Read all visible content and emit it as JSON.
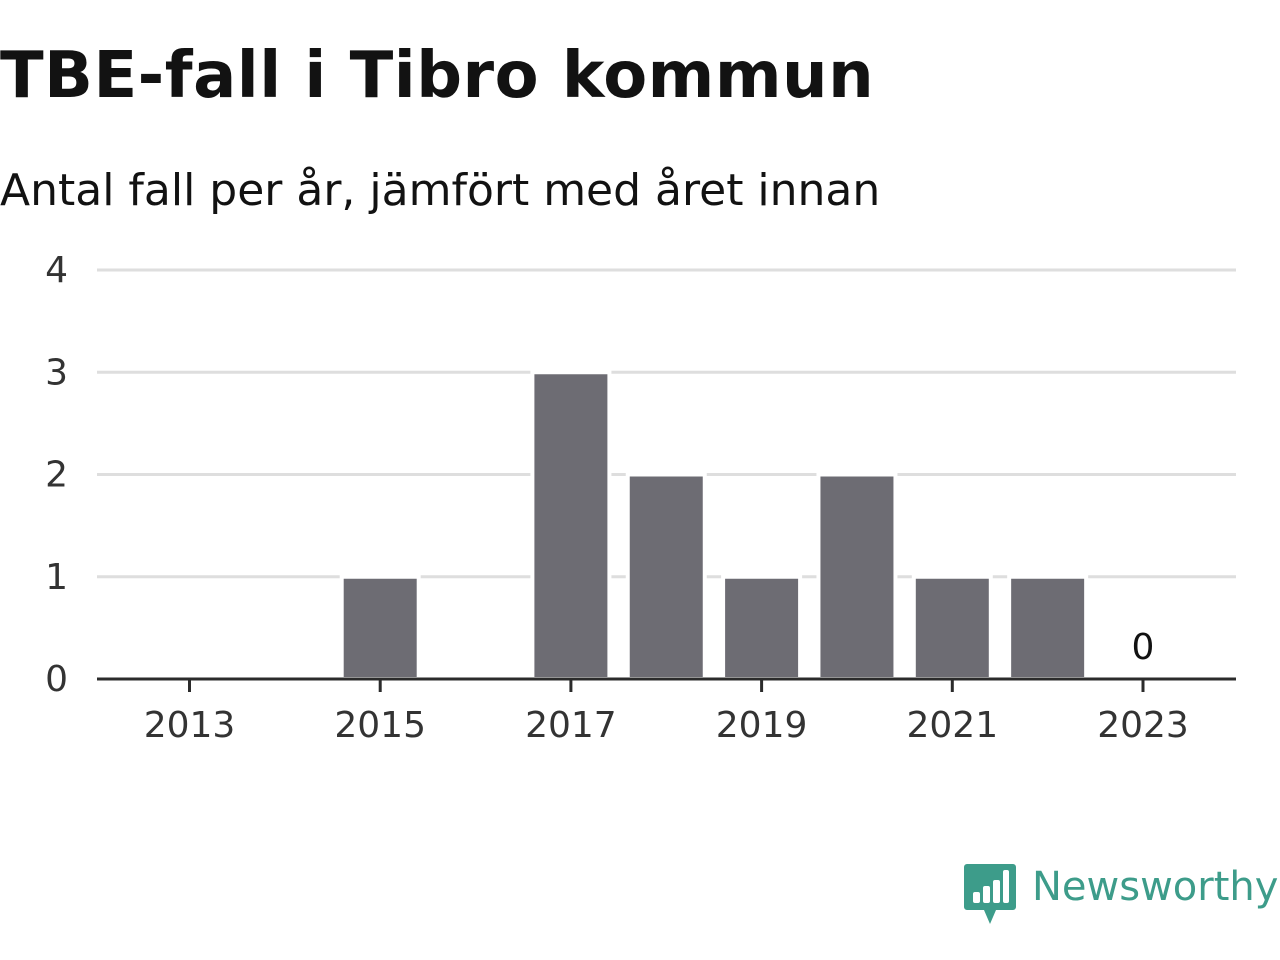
{
  "title": "TBE-fall i Tibro kommun",
  "subtitle": "Antal fall per år, jämfört med året innan",
  "brand": {
    "name": "Newsworthy",
    "color": "#3d9c8a",
    "logo_icon": "bar-chart-speech-bubble-icon"
  },
  "colors": {
    "bar": "#6d6c73",
    "grid": "#dedede",
    "axis": "#2b2b2b",
    "text": "#121212"
  },
  "chart_data": {
    "type": "bar",
    "categories": [
      "2013",
      "2014",
      "2015",
      "2016",
      "2017",
      "2018",
      "2019",
      "2020",
      "2021",
      "2022",
      "2023"
    ],
    "values": [
      0,
      0,
      1,
      0,
      3,
      2,
      1,
      2,
      1,
      1,
      0
    ],
    "xlabel": "",
    "ylabel": "",
    "ylim": [
      0,
      4
    ],
    "yticks": [
      "0",
      "1",
      "2",
      "3",
      "4"
    ],
    "xtick_labels": [
      "2013",
      "2015",
      "2017",
      "2019",
      "2021",
      "2023"
    ],
    "annotations": [
      {
        "category": "2023",
        "text": "0"
      }
    ],
    "grid": true,
    "legend": "none"
  }
}
